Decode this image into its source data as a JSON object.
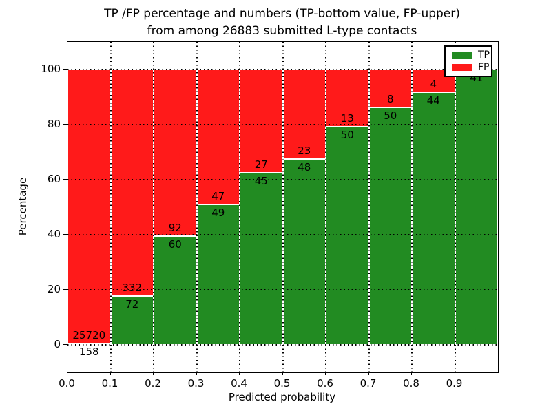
{
  "title": {
    "line1": "TP /FP percentage and numbers (TP-bottom value, FP-upper)",
    "line2": "from among 26883 submitted L-type contacts"
  },
  "axes": {
    "xlabel": "Predicted probability",
    "ylabel": "Percentage",
    "xtick_labels": [
      "0.0",
      "0.1",
      "0.2",
      "0.3",
      "0.4",
      "0.5",
      "0.6",
      "0.7",
      "0.8",
      "0.9"
    ],
    "xtick_values": [
      0.0,
      0.1,
      0.2,
      0.3,
      0.4,
      0.5,
      0.6,
      0.7,
      0.8,
      0.9
    ],
    "ytick_labels": [
      "0",
      "20",
      "40",
      "60",
      "80",
      "100"
    ],
    "ytick_values": [
      0,
      20,
      40,
      60,
      80,
      100
    ],
    "xlim": [
      0.0,
      1.0
    ],
    "ylim": [
      -10,
      110
    ],
    "grid": "dotted"
  },
  "legend": {
    "position": "upper right",
    "items": [
      {
        "name": "tp",
        "label": "TP",
        "color": "#228b22"
      },
      {
        "name": "fp",
        "label": "FP",
        "color": "#ff1a1a"
      }
    ]
  },
  "chart_data": {
    "type": "bar",
    "stacked": true,
    "orientation": "vertical",
    "bin_width": 0.1,
    "categories": [
      "0.0-0.1",
      "0.1-0.2",
      "0.2-0.3",
      "0.3-0.4",
      "0.4-0.5",
      "0.5-0.6",
      "0.6-0.7",
      "0.7-0.8",
      "0.8-0.9",
      "0.9-1.0"
    ],
    "series": [
      {
        "name": "TP",
        "color": "#228b22",
        "values": [
          158,
          72,
          60,
          49,
          45,
          48,
          50,
          50,
          44,
          41
        ]
      },
      {
        "name": "FP",
        "color": "#ff1a1a",
        "values": [
          25720,
          332,
          92,
          47,
          27,
          23,
          13,
          8,
          4,
          0
        ]
      }
    ],
    "tp_percentages": [
      0.61,
      17.82,
      39.47,
      51.04,
      62.5,
      67.61,
      79.37,
      86.21,
      91.67,
      100.0
    ],
    "tp_labels": [
      "158",
      "72",
      "60",
      "49",
      "45",
      "48",
      "50",
      "50",
      "44",
      "41"
    ],
    "fp_labels": [
      "25720",
      "332",
      "92",
      "47",
      "27",
      "23",
      "13",
      "8",
      "4",
      ""
    ],
    "total_contacts": 26883
  },
  "colors": {
    "tp": "#228b22",
    "fp": "#ff1a1a",
    "background": "#ffffff",
    "grid": "#000000",
    "bar_edge": "#ffffff",
    "text": "#000000"
  }
}
